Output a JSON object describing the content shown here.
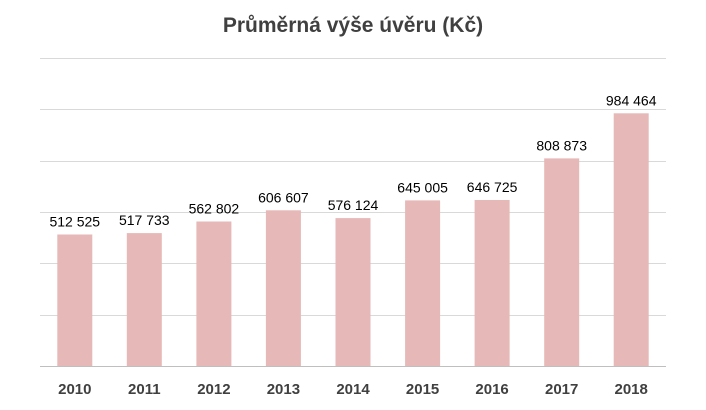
{
  "chart_data": {
    "type": "bar",
    "title": "Průměrná výše úvěru (Kč)",
    "xlabel": "",
    "ylabel": "",
    "categories": [
      "2010",
      "2011",
      "2012",
      "2013",
      "2014",
      "2015",
      "2016",
      "2017",
      "2018"
    ],
    "values": [
      512525,
      517733,
      562802,
      606607,
      576124,
      645005,
      646725,
      808873,
      984464
    ],
    "value_labels": [
      "512 525",
      "517 733",
      "562 802",
      "606 607",
      "576 124",
      "645 005",
      "646 725",
      "808 873",
      "984 464"
    ],
    "ylim": [
      0,
      1200000
    ],
    "grid": true,
    "legend": "none",
    "bar_color": "#e6b8b7",
    "grid_color": "#d9d9d9"
  }
}
